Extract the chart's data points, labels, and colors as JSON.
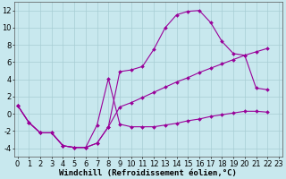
{
  "xlabel": "Windchill (Refroidissement éolien,°C)",
  "background_color": "#c8e8ee",
  "grid_color": "#a8cdd4",
  "line_color": "#990099",
  "xlim_min": 0,
  "xlim_max": 23,
  "ylim_min": -5,
  "ylim_max": 13,
  "xticks": [
    0,
    1,
    2,
    3,
    4,
    5,
    6,
    7,
    8,
    9,
    10,
    11,
    12,
    13,
    14,
    15,
    16,
    17,
    18,
    19,
    20,
    21,
    22,
    23
  ],
  "yticks": [
    -4,
    -2,
    0,
    2,
    4,
    6,
    8,
    10,
    12
  ],
  "line1_x": [
    0,
    1,
    2,
    3,
    4,
    5,
    6,
    7,
    8,
    9,
    10,
    11,
    12,
    13,
    14,
    15,
    16,
    17,
    18,
    19,
    20,
    21,
    22
  ],
  "line1_y": [
    1,
    -1,
    -2.2,
    -2.2,
    -3.7,
    -3.9,
    -3.9,
    -3.4,
    -1.5,
    4.9,
    5.1,
    5.5,
    7.5,
    10.0,
    11.5,
    11.9,
    12.0,
    10.6,
    8.4,
    7.0,
    6.8,
    3.0,
    2.8
  ],
  "line2_x": [
    0,
    1,
    2,
    3,
    4,
    5,
    6,
    7,
    8,
    9,
    10,
    11,
    12,
    13,
    14,
    15,
    16,
    17,
    18,
    19,
    20,
    21,
    22
  ],
  "line2_y": [
    1,
    -1,
    -2.2,
    -2.2,
    -3.7,
    -3.9,
    -3.9,
    -1.3,
    4.1,
    -1.2,
    -1.5,
    -1.5,
    -1.5,
    -1.3,
    -1.1,
    -0.8,
    -0.6,
    -0.3,
    -0.1,
    0.1,
    0.3,
    0.3,
    0.2
  ],
  "line3_x": [
    0,
    1,
    2,
    3,
    4,
    5,
    6,
    7,
    8,
    9,
    10,
    11,
    12,
    13,
    14,
    15,
    16,
    17,
    18,
    19,
    20,
    21,
    22
  ],
  "line3_y": [
    1,
    -1,
    -2.2,
    -2.2,
    -3.7,
    -3.9,
    -3.9,
    -3.4,
    -1.5,
    0.8,
    1.3,
    1.9,
    2.5,
    3.1,
    3.7,
    4.2,
    4.8,
    5.3,
    5.8,
    6.3,
    6.8,
    7.2,
    7.6
  ],
  "xlabel_fontsize": 6.5,
  "tick_fontsize": 6,
  "figsize": [
    3.2,
    2.0
  ],
  "dpi": 100
}
